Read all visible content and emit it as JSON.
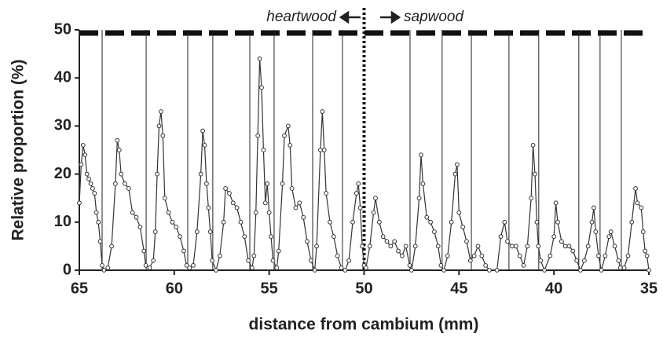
{
  "chart_data": {
    "type": "line",
    "x_label": "distance from cambium (mm)",
    "y_label": "Relative proportion (%)",
    "annotations": [
      "heartwood",
      "sapwood"
    ],
    "heartwood_sapwood_boundary": 50,
    "ring_boundaries": [
      63.8,
      61.48,
      59.29,
      57.97,
      56.02,
      54.74,
      52.71,
      51.14,
      47.58,
      45.89,
      44.35,
      42.37,
      40.8,
      38.69,
      37.57,
      36.45
    ],
    "xlim": [
      65,
      35
    ],
    "xticks": [
      65,
      60,
      55,
      50,
      45,
      40,
      35
    ],
    "ylim": [
      0,
      50
    ],
    "yticks": [
      0,
      10,
      20,
      30,
      40,
      50
    ],
    "series": [
      {
        "color": "#333333",
        "x": [
          65,
          64.9,
          64.8,
          64.7,
          64.6,
          64.5,
          64.4,
          64.3,
          64.2,
          64.1,
          64.0,
          63.9,
          63.8,
          63.7,
          63.5,
          63.3,
          63.1,
          63.0,
          62.9,
          62.8,
          62.6,
          62.4,
          62.2,
          62.0,
          61.8,
          61.6,
          61.5,
          61.3,
          61.1,
          61.0,
          60.9,
          60.8,
          60.7,
          60.6,
          60.5,
          60.3,
          60.1,
          59.9,
          59.7,
          59.5,
          59.35,
          59.2,
          59.0,
          58.8,
          58.6,
          58.5,
          58.4,
          58.3,
          58.2,
          58.1,
          58.0,
          57.8,
          57.6,
          57.4,
          57.3,
          57.1,
          56.9,
          56.7,
          56.5,
          56.3,
          56.1,
          55.9,
          55.8,
          55.7,
          55.6,
          55.5,
          55.4,
          55.3,
          55.2,
          55.1,
          55.0,
          54.9,
          54.8,
          54.6,
          54.5,
          54.3,
          54.2,
          54.0,
          53.9,
          53.8,
          53.6,
          53.4,
          53.2,
          53.0,
          52.8,
          52.6,
          52.5,
          52.3,
          52.2,
          52.1,
          52.0,
          51.8,
          51.6,
          51.4,
          51.2,
          51.0,
          50.8,
          50.6,
          50.4,
          50.3,
          50.2,
          50.1,
          50.0,
          49.9,
          49.7,
          49.5,
          49.4,
          49.2,
          49.0,
          48.8,
          48.6,
          48.4,
          48.2,
          48.0,
          47.8,
          47.6,
          47.5,
          47.3,
          47.1,
          47.0,
          46.9,
          46.7,
          46.5,
          46.3,
          46.1,
          45.95,
          45.8,
          45.6,
          45.4,
          45.2,
          45.1,
          45.0,
          44.8,
          44.6,
          44.4,
          44.2,
          44.0,
          43.8,
          43.6,
          43.4,
          43.0,
          42.8,
          42.6,
          42.45,
          42.2,
          42.0,
          41.8,
          41.6,
          41.4,
          41.2,
          41.1,
          41.0,
          40.9,
          40.82,
          40.7,
          40.5,
          40.2,
          40.0,
          39.9,
          39.8,
          39.6,
          39.4,
          39.2,
          39.0,
          38.8,
          38.6,
          38.4,
          38.2,
          38.0,
          37.9,
          37.8,
          37.65,
          37.5,
          37.3,
          37.1,
          37.0,
          36.8,
          36.6,
          36.5,
          36.3,
          36.1,
          35.9,
          35.7,
          35.6,
          35.4,
          35.3,
          35.2,
          35.1,
          35.0
        ],
        "values": [
          14,
          22,
          26,
          24,
          20,
          19,
          18,
          17,
          16,
          12,
          10,
          6,
          1,
          0,
          0.5,
          5,
          18,
          27,
          25,
          20,
          18,
          17,
          12,
          11,
          9,
          4,
          1,
          0.5,
          2,
          8,
          20,
          30,
          33,
          28,
          15,
          12,
          10,
          9,
          7,
          4,
          1,
          0.5,
          1,
          8,
          20,
          29,
          26,
          18,
          13,
          8,
          2,
          0,
          3,
          10,
          17,
          16,
          14,
          13,
          10,
          7,
          2,
          0.5,
          3,
          12,
          28,
          44,
          38,
          25,
          14,
          18,
          12,
          7,
          2,
          0.5,
          4,
          18,
          28,
          30,
          26,
          17,
          13,
          14,
          11,
          6,
          2,
          0,
          5,
          25,
          33,
          25,
          16,
          10,
          7,
          3,
          0.5,
          0,
          2,
          10,
          16,
          18,
          13,
          5,
          1,
          0.5,
          5,
          12,
          15,
          10,
          7,
          6,
          5,
          6,
          4,
          3,
          5,
          1,
          0,
          5,
          15,
          24,
          18,
          11,
          10,
          8,
          5,
          1,
          0,
          3,
          10,
          20,
          22,
          12,
          9,
          6,
          2,
          3,
          5,
          3,
          1,
          0,
          0,
          7,
          10,
          6,
          5,
          5,
          3,
          1,
          5,
          15,
          26,
          20,
          10,
          5,
          2,
          0,
          3,
          7,
          14,
          10,
          6,
          5,
          5,
          4,
          2,
          0,
          2,
          5,
          10,
          13,
          8,
          3,
          0,
          3,
          7,
          8,
          5,
          2,
          0.5,
          0.5,
          3,
          10,
          17,
          14,
          13,
          8,
          4,
          3,
          0
        ]
      }
    ]
  }
}
